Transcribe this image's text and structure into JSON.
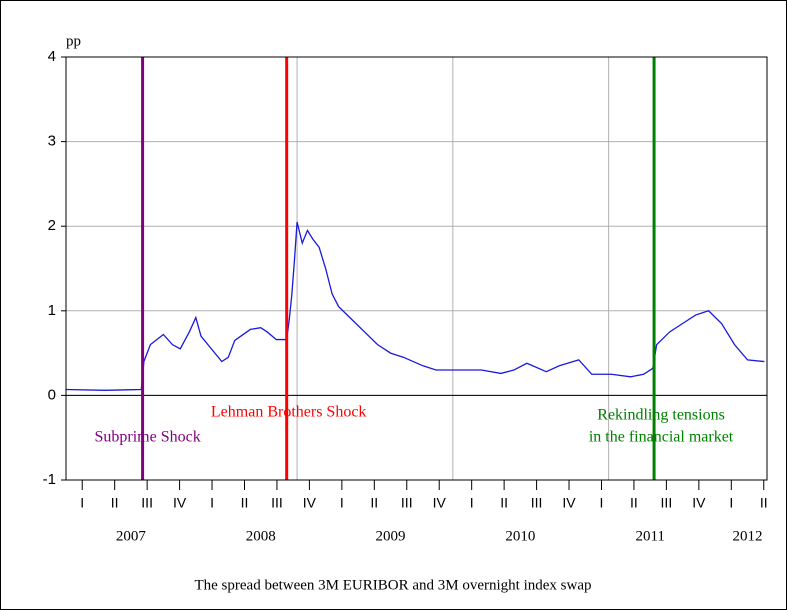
{
  "chart_data": {
    "type": "line",
    "title": "The spread between 3M EURIBOR and 3M overnight index swap",
    "y_label": "pp",
    "xlim": [
      2007.0,
      2012.4
    ],
    "ylim": [
      -1,
      4
    ],
    "yticks": [
      -1,
      0,
      1,
      2,
      3,
      4
    ],
    "xticks": [
      {
        "value": 2007.125,
        "label": "I"
      },
      {
        "value": 2007.375,
        "label": "II"
      },
      {
        "value": 2007.625,
        "label": "III"
      },
      {
        "value": 2007.875,
        "label": "IV"
      },
      {
        "value": 2008.125,
        "label": "I"
      },
      {
        "value": 2008.375,
        "label": "II"
      },
      {
        "value": 2008.625,
        "label": "III"
      },
      {
        "value": 2008.875,
        "label": "IV"
      },
      {
        "value": 2009.125,
        "label": "I"
      },
      {
        "value": 2009.375,
        "label": "II"
      },
      {
        "value": 2009.625,
        "label": "III"
      },
      {
        "value": 2009.875,
        "label": "IV"
      },
      {
        "value": 2010.125,
        "label": "I"
      },
      {
        "value": 2010.375,
        "label": "II"
      },
      {
        "value": 2010.625,
        "label": "III"
      },
      {
        "value": 2010.875,
        "label": "IV"
      },
      {
        "value": 2011.125,
        "label": "I"
      },
      {
        "value": 2011.375,
        "label": "II"
      },
      {
        "value": 2011.625,
        "label": "III"
      },
      {
        "value": 2011.875,
        "label": "IV"
      },
      {
        "value": 2012.125,
        "label": "I"
      },
      {
        "value": 2012.375,
        "label": "II"
      }
    ],
    "year_ticks": [
      {
        "value": 2007.5,
        "label": "2007"
      },
      {
        "value": 2008.5,
        "label": "2008"
      },
      {
        "value": 2009.5,
        "label": "2009"
      },
      {
        "value": 2010.5,
        "label": "2010"
      },
      {
        "value": 2011.5,
        "label": "2011"
      },
      {
        "value": 2012.25,
        "label": "2012"
      }
    ],
    "xgrid": [
      2007.59,
      2008.78,
      2009.98,
      2011.18
    ],
    "grid": true,
    "series": [
      {
        "color": "#1a1adc",
        "x": [
          2007.0,
          2007.3,
          2007.58,
          2007.6,
          2007.65,
          2007.75,
          2007.82,
          2007.88,
          2007.95,
          2008.0,
          2008.04,
          2008.12,
          2008.2,
          2008.25,
          2008.3,
          2008.42,
          2008.5,
          2008.55,
          2008.62,
          2008.7,
          2008.72,
          2008.74,
          2008.76,
          2008.78,
          2008.82,
          2008.86,
          2008.9,
          2008.95,
          2009.0,
          2009.05,
          2009.1,
          2009.2,
          2009.3,
          2009.4,
          2009.5,
          2009.6,
          2009.75,
          2009.85,
          2010.0,
          2010.2,
          2010.35,
          2010.45,
          2010.55,
          2010.7,
          2010.8,
          2010.95,
          2011.05,
          2011.2,
          2011.35,
          2011.45,
          2011.52,
          2011.55,
          2011.65,
          2011.75,
          2011.85,
          2011.95,
          2012.05,
          2012.15,
          2012.25,
          2012.38
        ],
        "values": [
          0.07,
          0.06,
          0.07,
          0.4,
          0.6,
          0.72,
          0.6,
          0.55,
          0.75,
          0.92,
          0.7,
          0.55,
          0.4,
          0.45,
          0.65,
          0.78,
          0.8,
          0.75,
          0.66,
          0.66,
          0.9,
          1.2,
          1.6,
          2.05,
          1.8,
          1.95,
          1.85,
          1.75,
          1.5,
          1.2,
          1.05,
          0.9,
          0.75,
          0.6,
          0.5,
          0.45,
          0.35,
          0.3,
          0.3,
          0.3,
          0.26,
          0.3,
          0.38,
          0.28,
          0.35,
          0.42,
          0.25,
          0.25,
          0.22,
          0.25,
          0.32,
          0.6,
          0.75,
          0.85,
          0.95,
          1.0,
          0.85,
          0.6,
          0.42,
          0.4
        ]
      }
    ],
    "shocks": [
      {
        "x": 2007.59,
        "color": "#800080",
        "label": [
          "Subprime Shock"
        ]
      },
      {
        "x": 2008.7,
        "color": "#ff0000",
        "label": [
          "Lehman Brothers Shock"
        ]
      },
      {
        "x": 2011.53,
        "color": "#008000",
        "label": [
          "Rekindling tensions",
          "in the financial market"
        ]
      }
    ]
  }
}
